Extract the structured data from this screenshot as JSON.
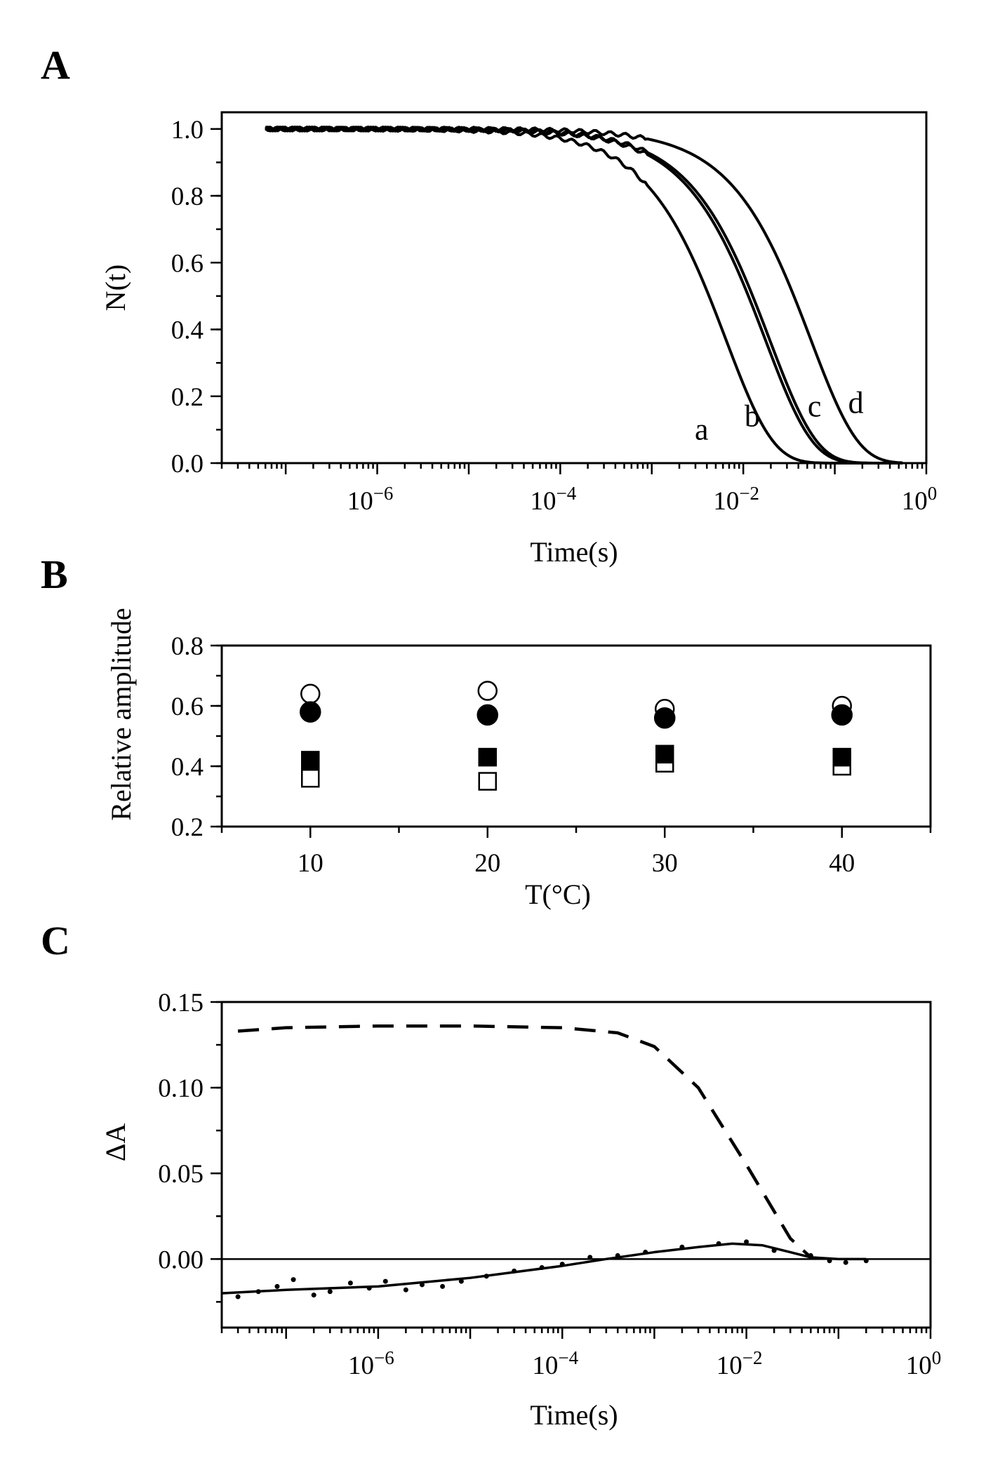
{
  "chart_data": [
    {
      "panel": "A",
      "type": "line",
      "xlabel": "Time(s)",
      "ylabel": "N(t)",
      "xscale": "log",
      "xlim": [
        2e-08,
        1
      ],
      "ylim": [
        0,
        1.05
      ],
      "x_ticks": [
        {
          "value": 1e-06,
          "base": "10",
          "exp": "−6"
        },
        {
          "value": 0.0001,
          "base": "10",
          "exp": "−4"
        },
        {
          "value": 0.01,
          "base": "10",
          "exp": "−2"
        },
        {
          "value": 1,
          "base": "10",
          "exp": "0"
        }
      ],
      "y_ticks": [
        "0.0",
        "0.2",
        "0.4",
        "0.6",
        "0.8",
        "1.0"
      ],
      "series": [
        {
          "name": "a",
          "tau": 0.0065,
          "beta": 0.85
        },
        {
          "name": "b",
          "tau": 0.0175,
          "beta": 0.85
        },
        {
          "name": "c",
          "tau": 0.0195,
          "beta": 0.85
        },
        {
          "name": "d",
          "tau": 0.055,
          "beta": 0.85
        }
      ],
      "annotations": [
        {
          "text": "a",
          "x": 0.0035,
          "y": 0.07
        },
        {
          "text": "b",
          "x": 0.0125,
          "y": 0.11
        },
        {
          "text": "c",
          "x": 0.06,
          "y": 0.14
        },
        {
          "text": "d",
          "x": 0.17,
          "y": 0.15
        }
      ]
    },
    {
      "panel": "B",
      "type": "scatter",
      "xlabel": "T(°C)",
      "ylabel": "Relative amplitude",
      "xlim": [
        5,
        45
      ],
      "ylim": [
        0.2,
        0.8
      ],
      "x_ticks": [
        "10",
        "20",
        "30",
        "40"
      ],
      "y_ticks": [
        "0.2",
        "0.4",
        "0.6",
        "0.8"
      ],
      "series": [
        {
          "name": "open circles",
          "marker": "circle",
          "filled": false,
          "x": [
            10,
            20,
            30,
            40
          ],
          "y": [
            0.64,
            0.65,
            0.59,
            0.6
          ]
        },
        {
          "name": "filled circles",
          "marker": "circle",
          "filled": true,
          "x": [
            10,
            20,
            30,
            40
          ],
          "y": [
            0.58,
            0.57,
            0.56,
            0.57
          ]
        },
        {
          "name": "filled squares",
          "marker": "square",
          "filled": true,
          "x": [
            10,
            20,
            30,
            40
          ],
          "y": [
            0.42,
            0.43,
            0.44,
            0.43
          ]
        },
        {
          "name": "open squares",
          "marker": "square",
          "filled": false,
          "x": [
            10,
            20,
            30,
            40
          ],
          "y": [
            0.36,
            0.35,
            0.41,
            0.4
          ]
        }
      ]
    },
    {
      "panel": "C",
      "type": "line",
      "xlabel": "Time(s)",
      "ylabel": "ΔA",
      "xscale": "log",
      "xlim": [
        2e-08,
        1
      ],
      "ylim": [
        -0.04,
        0.15
      ],
      "x_ticks": [
        {
          "value": 1e-06,
          "base": "10",
          "exp": "−6"
        },
        {
          "value": 0.0001,
          "base": "10",
          "exp": "−4"
        },
        {
          "value": 0.01,
          "base": "10",
          "exp": "−2"
        },
        {
          "value": 1,
          "base": "10",
          "exp": "0"
        }
      ],
      "y_ticks": [
        "0.00",
        "0.05",
        "0.10",
        "0.15"
      ],
      "zero_line": true,
      "series": [
        {
          "name": "dashed",
          "style": "dashed",
          "x": [
            3e-08,
            1e-07,
            1e-06,
            1e-05,
            0.0001,
            0.0004,
            0.001,
            0.003,
            0.01,
            0.03,
            0.05
          ],
          "y": [
            0.133,
            0.135,
            0.136,
            0.136,
            0.135,
            0.132,
            0.124,
            0.1,
            0.055,
            0.012,
            0.001
          ]
        },
        {
          "name": "fit",
          "style": "solid",
          "x": [
            2e-08,
            1e-07,
            1e-06,
            1e-05,
            0.0001,
            0.0003,
            0.001,
            0.003,
            0.007,
            0.015,
            0.03,
            0.05,
            0.1,
            0.2
          ],
          "y": [
            -0.02,
            -0.018,
            -0.016,
            -0.011,
            -0.004,
            0.0,
            0.004,
            0.007,
            0.009,
            0.008,
            0.004,
            0.001,
            0.0,
            0.0
          ]
        },
        {
          "name": "data points",
          "style": "dots",
          "x": [
            3e-08,
            5e-08,
            8e-08,
            1.2e-07,
            2e-07,
            3e-07,
            5e-07,
            8e-07,
            1.2e-06,
            2e-06,
            3e-06,
            5e-06,
            8e-06,
            1.5e-05,
            3e-05,
            6e-05,
            0.0001,
            0.0002,
            0.0004,
            0.0008,
            0.002,
            0.005,
            0.01,
            0.02,
            0.05,
            0.08,
            0.12,
            0.2
          ],
          "y": [
            -0.022,
            -0.019,
            -0.016,
            -0.012,
            -0.021,
            -0.019,
            -0.014,
            -0.017,
            -0.013,
            -0.018,
            -0.015,
            -0.016,
            -0.013,
            -0.01,
            -0.007,
            -0.005,
            -0.003,
            0.001,
            0.002,
            0.004,
            0.007,
            0.009,
            0.01,
            0.005,
            0.002,
            -0.001,
            -0.002,
            -0.001
          ]
        }
      ]
    }
  ]
}
